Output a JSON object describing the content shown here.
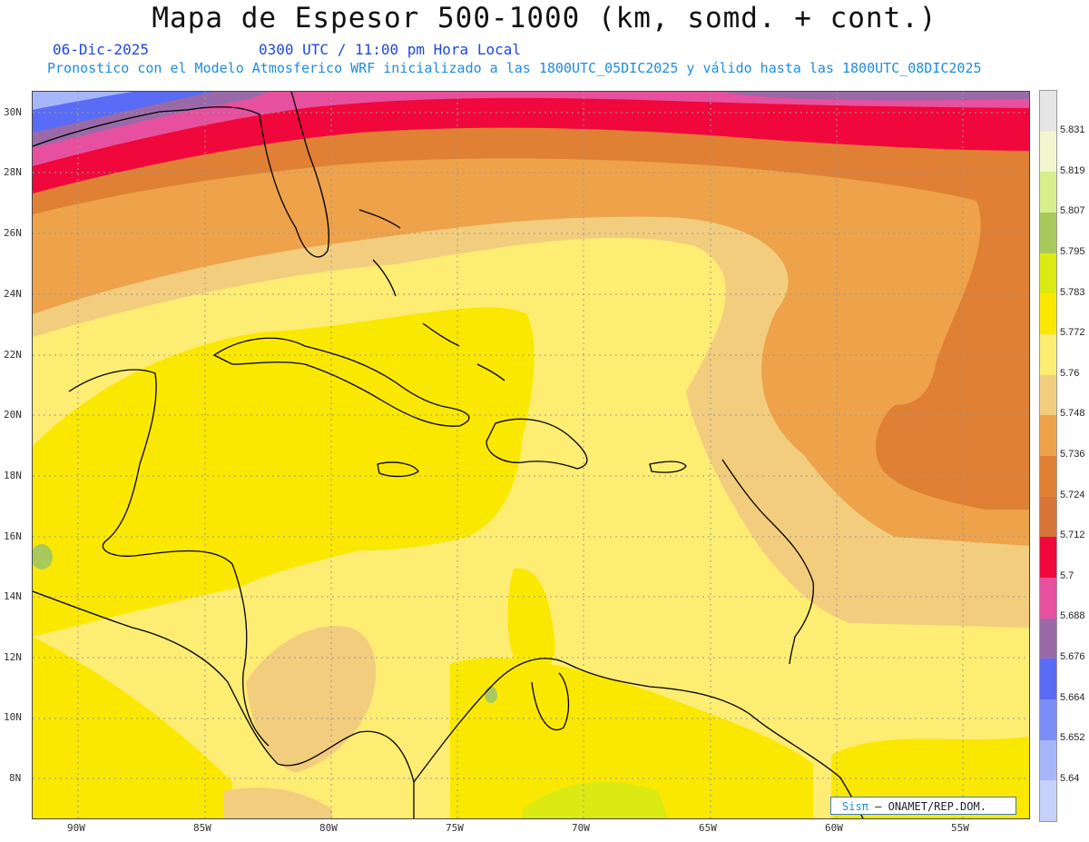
{
  "header": {
    "title": "Mapa de Espesor 500-1000 (km, somd. + cont.)",
    "date": "06-Dic-2025",
    "time": "0300 UTC / 11:00 pm Hora Local",
    "forecast": "Pronostico con el Modelo Atmosferico WRF inicializado a las 1800UTC_05DIC2025 y válido hasta las  1800UTC_08DIC2025"
  },
  "axes": {
    "lat_labels": [
      "30N",
      "28N",
      "26N",
      "24N",
      "22N",
      "20N",
      "18N",
      "16N",
      "14N",
      "12N",
      "10N",
      "8N"
    ],
    "lon_labels": [
      "90W",
      "85W",
      "80W",
      "75W",
      "70W",
      "65W",
      "60W",
      "55W"
    ]
  },
  "colorbar": {
    "levels": [
      "5.831",
      "5.819",
      "5.807",
      "5.795",
      "5.783",
      "5.772",
      "5.76",
      "5.748",
      "5.736",
      "5.724",
      "5.712",
      "5.7",
      "5.688",
      "5.676",
      "5.664",
      "5.652",
      "5.64"
    ],
    "colors": [
      "#e6e6e6",
      "#f3f7cf",
      "#d8ef8e",
      "#aac95c",
      "#dcea14",
      "#fbe800",
      "#fded73",
      "#f3cd7e",
      "#eea24a",
      "#df8035",
      "#d8763a",
      "#f0073c",
      "#e6509e",
      "#9a6aa8",
      "#5a6cf5",
      "#7b8ef8",
      "#a5b6fa",
      "#c6d2fc"
    ]
  },
  "map": {
    "colors": {
      "light_yellow": "#fded73",
      "yellow": "#fbe800",
      "tan": "#f3cd7e",
      "orange": "#eea24a",
      "dark_orange": "#df8035",
      "red": "#f0073c",
      "pink": "#e6509e",
      "purple": "#9a6aa8",
      "blue": "#5a6cf5",
      "light_blue": "#a5b6fa",
      "green": "#aac95c",
      "lime": "#dcea14"
    }
  },
  "credit": {
    "brand": "Sisπ",
    "org": "– ONAMET/REP.DOM."
  }
}
